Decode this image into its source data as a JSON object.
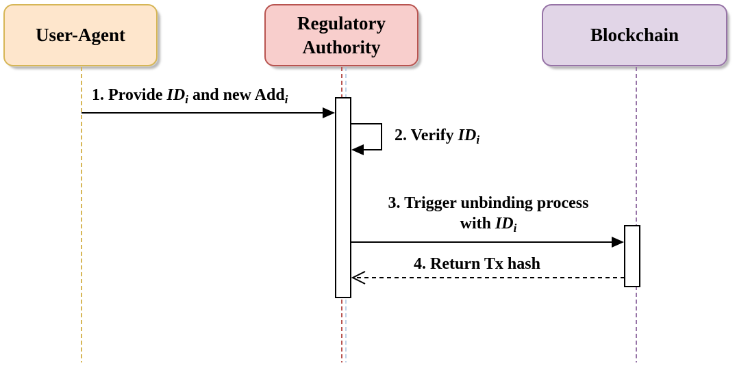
{
  "colors": {
    "user_fill": "#fee6cc",
    "user_stroke": "#d6b656",
    "user_line": "#d6b656",
    "reg_fill": "#f8cecc",
    "reg_stroke": "#b85450",
    "reg_line": "#b85450",
    "chain_fill": "#e1d5e7",
    "chain_stroke": "#9673a6",
    "chain_line": "#9673a6"
  },
  "actors": {
    "user_agent": {
      "label": "User-Agent"
    },
    "regulatory": {
      "label_line1": "Regulatory",
      "label_line2": "Authority"
    },
    "blockchain": {
      "label": "Blockchain"
    }
  },
  "messages": {
    "m1": {
      "prefix": "1. Provide ",
      "var": "ID",
      "sub": "i",
      "middle": " and new Add",
      "sub2": "i"
    },
    "m2": {
      "prefix": "2. Verify ",
      "var": "ID",
      "sub": "i"
    },
    "m3": {
      "line1": "3. Trigger unbinding process",
      "prefix": "with ",
      "var": "ID",
      "sub": "i"
    },
    "m4": {
      "text": "4. Return Tx hash"
    }
  }
}
